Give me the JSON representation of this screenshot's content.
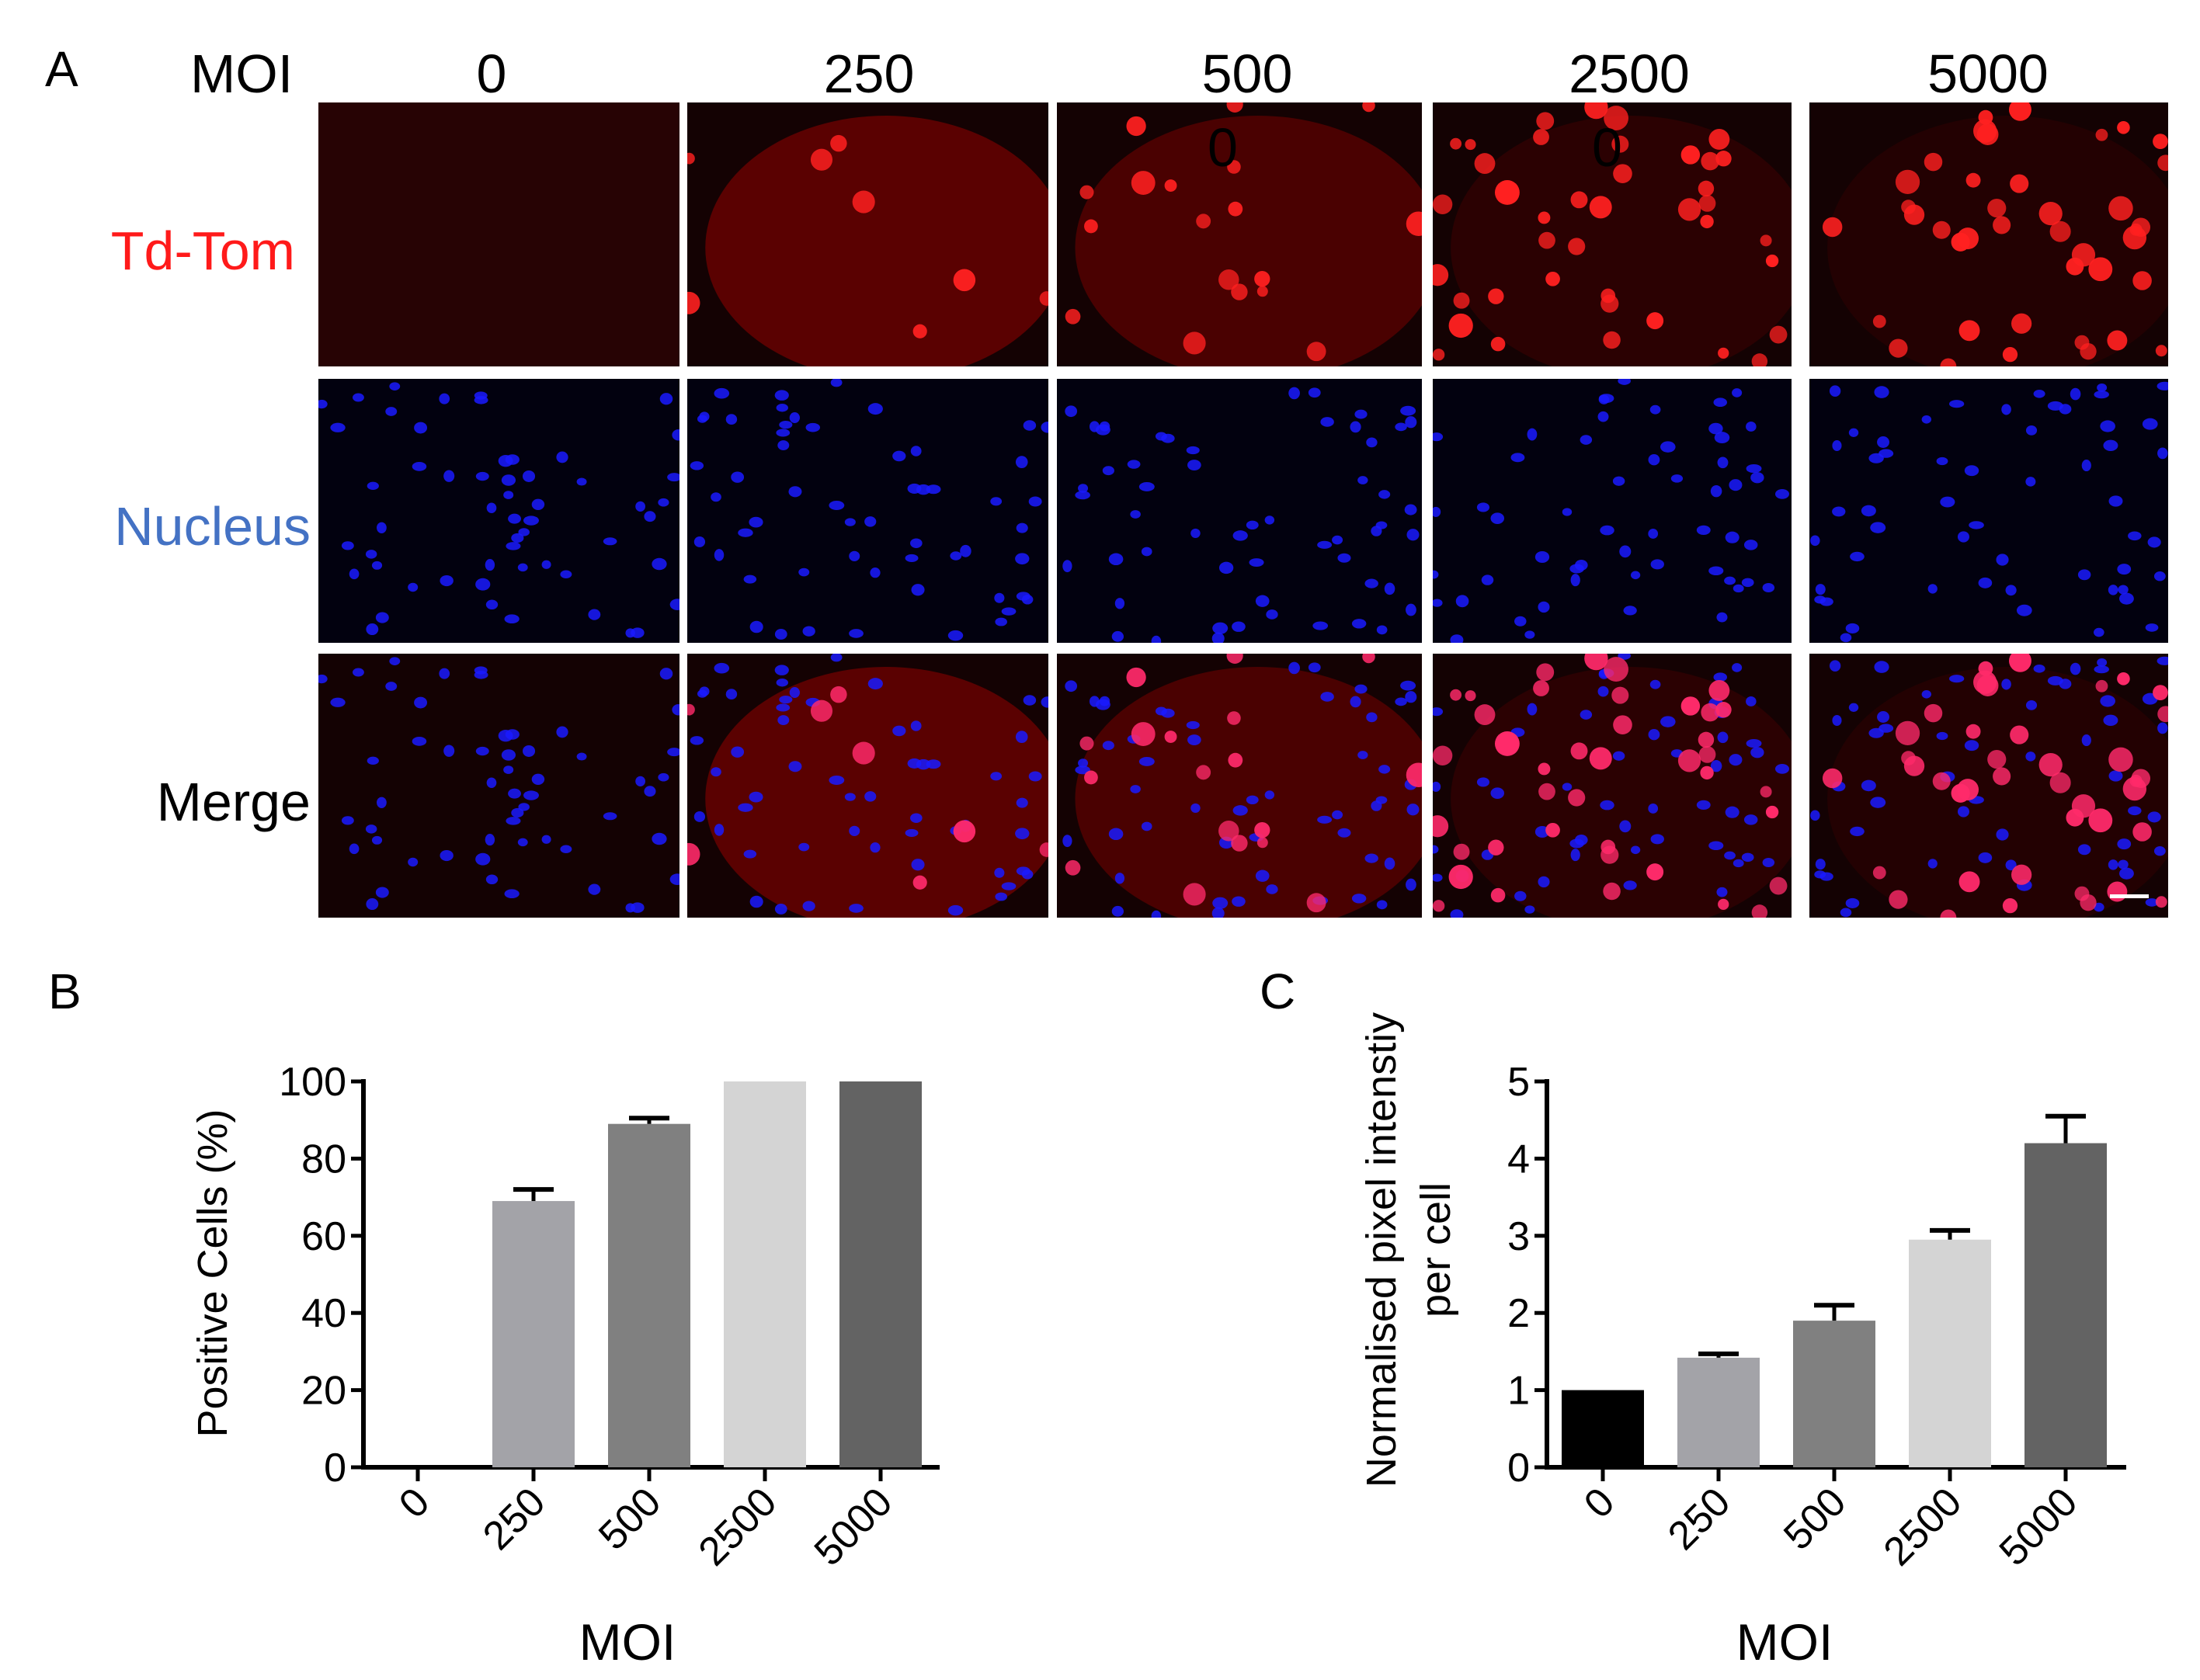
{
  "panels": {
    "a": "A",
    "b": "B",
    "c": "C"
  },
  "grid": {
    "moi_label": "MOI",
    "columns": [
      "0",
      "250",
      "500",
      "2500",
      "5000"
    ],
    "rows": [
      {
        "label": "Td-Tom",
        "color": "#ff1a1a"
      },
      {
        "label": "Nucleus",
        "color": "#4472c4"
      },
      {
        "label": "Merge",
        "color": "#000000"
      }
    ],
    "stray_marks": [
      "0",
      "0"
    ],
    "channel_colors": {
      "tdtom": "#ff2020",
      "nucleus": "#1a1aff",
      "merge": "#ff2a6a"
    },
    "scale_bar_color": "#ffffff"
  },
  "chart_data": [
    {
      "type": "bar",
      "categories": [
        "0",
        "250",
        "500",
        "2500",
        "5000"
      ],
      "values": [
        0,
        69,
        89,
        100,
        100
      ],
      "errors": [
        0,
        3,
        1.5,
        0,
        0
      ],
      "ylabel": "Positive Cells  (%)",
      "xlabel": "MOI",
      "ylim": [
        0,
        100
      ],
      "yticks": [
        "0",
        "20",
        "40",
        "60",
        "80",
        "100"
      ],
      "colors": [
        "#000000",
        "#a3a3a8",
        "#808080",
        "#d4d4d4",
        "#636363"
      ]
    },
    {
      "type": "bar",
      "categories": [
        "0",
        "250",
        "500",
        "2500",
        "5000"
      ],
      "values": [
        1.0,
        1.42,
        1.9,
        2.95,
        4.2
      ],
      "errors": [
        0,
        0.05,
        0.2,
        0.12,
        0.35
      ],
      "ylabel": [
        "Normalised pixel intenstiy",
        "per cell"
      ],
      "xlabel": "MOI",
      "ylim": [
        0,
        5
      ],
      "yticks": [
        "0",
        "1",
        "2",
        "3",
        "4",
        "5"
      ],
      "colors": [
        "#000000",
        "#a3a3a8",
        "#808080",
        "#d4d4d4",
        "#636363"
      ]
    }
  ]
}
